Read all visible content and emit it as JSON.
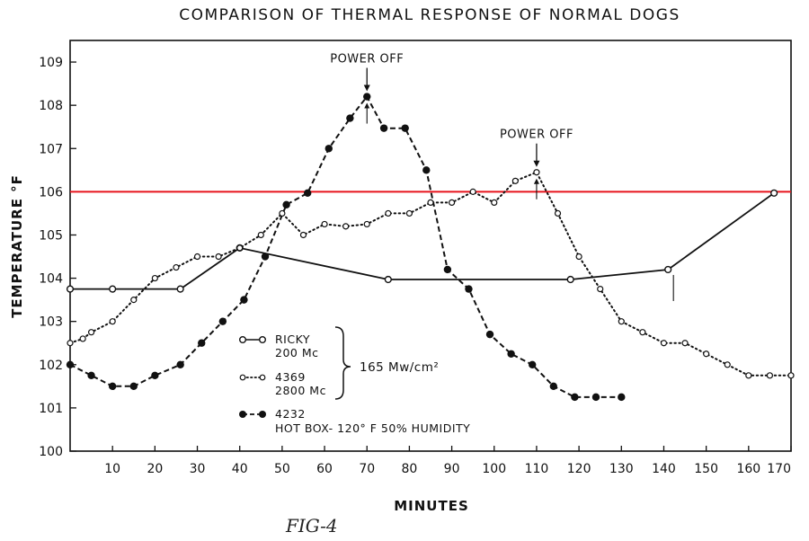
{
  "chart_data": {
    "type": "line",
    "title": "COMPARISON OF THERMAL RESPONSE OF NORMAL DOGS",
    "xlabel": "MINUTES",
    "ylabel": "TEMPERATURE °F",
    "xlim": [
      0,
      170
    ],
    "ylim": [
      100,
      109.5
    ],
    "x_ticks": [
      "10",
      "20",
      "30",
      "40",
      "50",
      "60",
      "70",
      "80",
      "90",
      "100",
      "110",
      "120",
      "130",
      "140",
      "150",
      "160",
      "170"
    ],
    "y_ticks": [
      "100",
      "101",
      "102",
      "103",
      "104",
      "105",
      "106",
      "107",
      "108",
      "109"
    ],
    "grid": false,
    "reference_line": {
      "y": 106,
      "color": "#e8141c"
    },
    "annotations": [
      {
        "text": "POWER OFF",
        "x": 70,
        "y": 108.2
      },
      {
        "text": "POWER OFF",
        "x": 110,
        "y": 106.45
      }
    ],
    "legend_position": "bottom-left",
    "legend_group_label": "165 Mw/cm²",
    "series": [
      {
        "name": "RICKY",
        "subname": "200 Mc",
        "marker": "open-circle",
        "line": "solid",
        "x": [
          0,
          10,
          26,
          40,
          75,
          118,
          141,
          166
        ],
        "y": [
          103.75,
          103.75,
          103.75,
          104.7,
          103.97,
          103.97,
          104.2,
          105.97
        ]
      },
      {
        "name": "4369",
        "subname": "2800 Mc",
        "marker": "open-circle-small",
        "line": "dotted",
        "x": [
          0,
          3,
          5,
          10,
          15,
          20,
          25,
          30,
          35,
          40,
          45,
          50,
          55,
          60,
          65,
          70,
          75,
          80,
          85,
          90,
          95,
          100,
          105,
          110,
          115,
          120,
          125,
          130,
          135,
          140,
          145,
          150,
          155,
          160,
          165,
          170
        ],
        "y": [
          102.5,
          102.6,
          102.75,
          103.0,
          103.5,
          104.0,
          104.25,
          104.5,
          104.5,
          104.7,
          105.0,
          105.5,
          105.0,
          105.25,
          105.2,
          105.25,
          105.5,
          105.5,
          105.75,
          105.75,
          106.0,
          105.75,
          106.25,
          106.45,
          105.5,
          104.5,
          103.75,
          103.0,
          102.75,
          102.5,
          102.5,
          102.25,
          102.0,
          101.75,
          101.75,
          101.75
        ]
      },
      {
        "name": "4232",
        "subname": "HOT BOX- 120° F 50% HUMIDITY",
        "marker": "filled-circle",
        "line": "dashed",
        "x": [
          0,
          5,
          10,
          15,
          20,
          26,
          31,
          36,
          41,
          46,
          51,
          56,
          61,
          66,
          70,
          74,
          79,
          84,
          89,
          94,
          99,
          104,
          109,
          114,
          119,
          124,
          130
        ],
        "y": [
          102.0,
          101.75,
          101.5,
          101.5,
          101.75,
          102.0,
          102.5,
          103.0,
          103.5,
          104.5,
          105.7,
          105.97,
          107.0,
          107.7,
          108.2,
          107.47,
          107.47,
          106.5,
          104.2,
          103.75,
          102.7,
          102.25,
          102.0,
          101.5,
          101.25,
          101.25,
          101.25
        ]
      }
    ]
  },
  "footer": {
    "fig_label": "FIG-4"
  }
}
